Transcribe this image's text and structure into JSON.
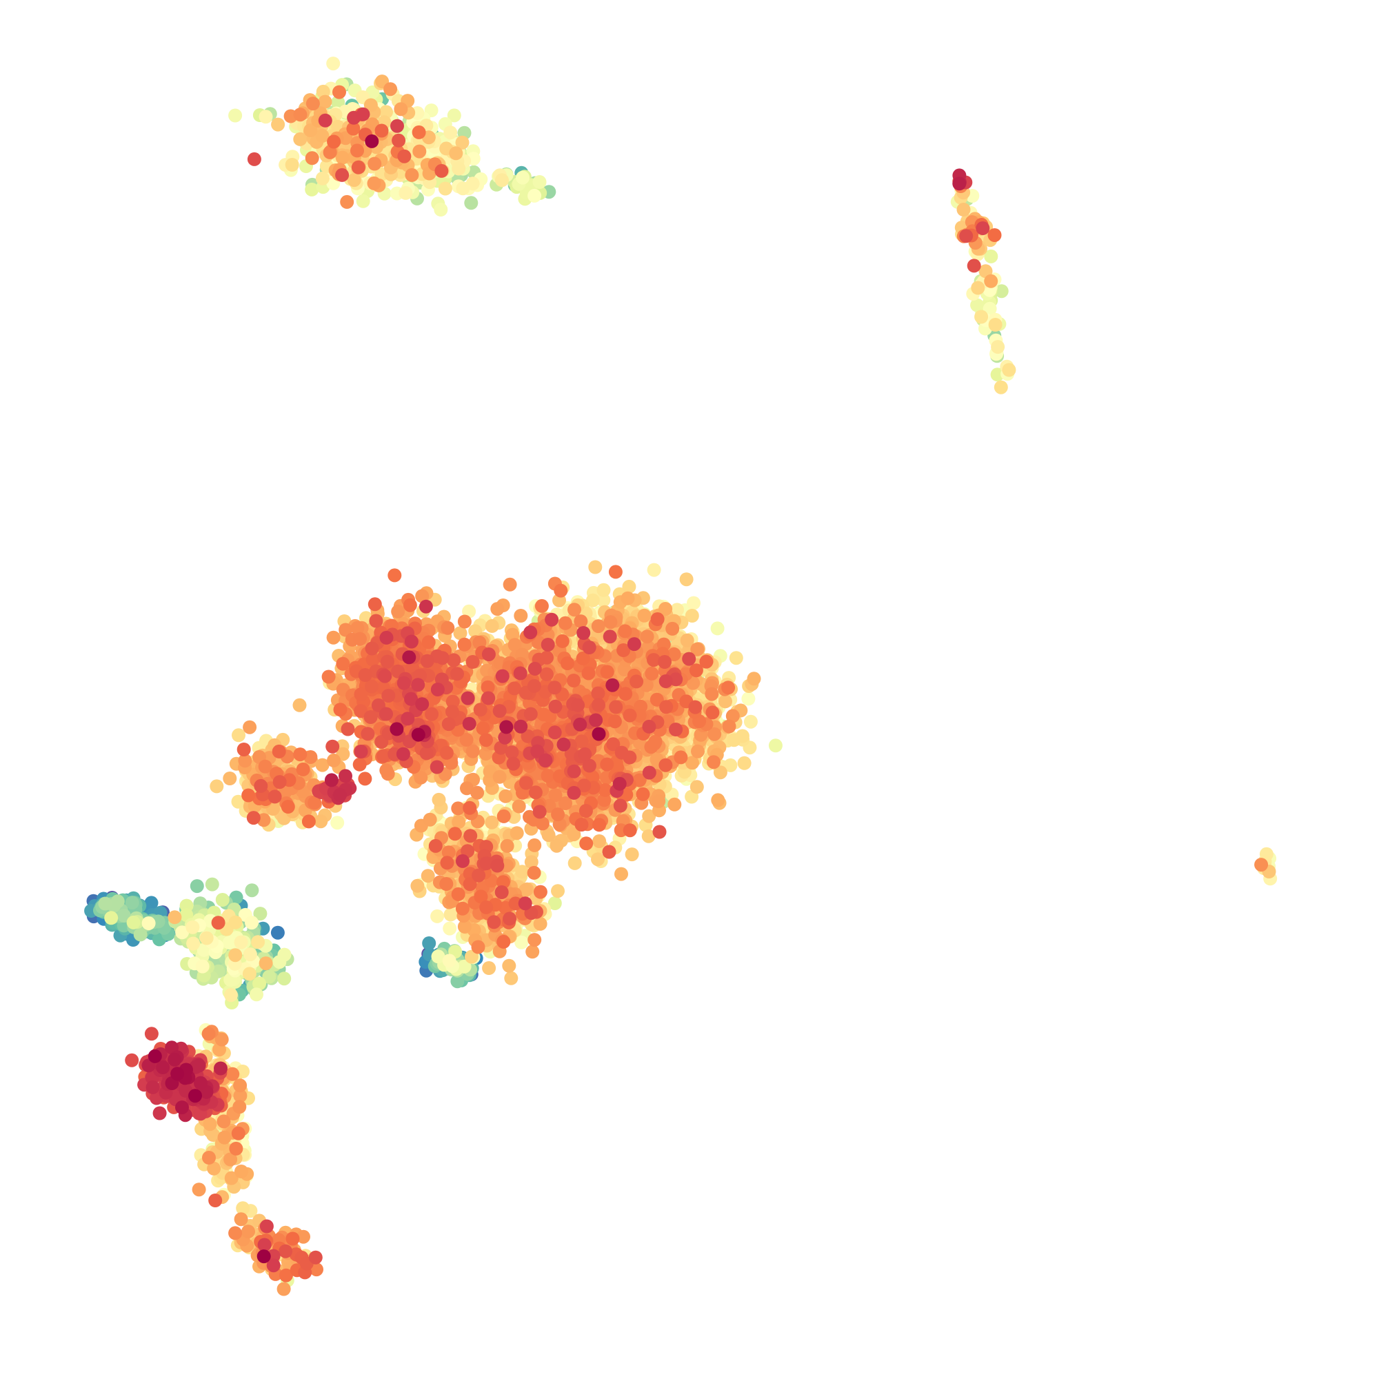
{
  "chart_data": {
    "type": "scatter",
    "title": "",
    "xlabel": "",
    "ylabel": "",
    "axes_visible": false,
    "grid": false,
    "legend": "none",
    "colormap": "Spectral_r",
    "color_range": [
      0,
      1
    ],
    "xlim": [
      0,
      100
    ],
    "ylim": [
      0,
      100
    ],
    "colormap_stops": [
      "#5e4fa2",
      "#3288bd",
      "#66c2a5",
      "#abdda4",
      "#e6f598",
      "#ffffbf",
      "#fee08b",
      "#fdae61",
      "#f46d43",
      "#d53e4f",
      "#9e0142"
    ],
    "clusters": [
      {
        "x": [
          22.5,
          25.5
        ],
        "y": [
          94.3,
          91.0
        ],
        "spread": [
          4.0,
          2.6
        ],
        "n": 360,
        "value_mean": 0.55,
        "value_sd": 0.14
      },
      {
        "x": [
          29.0,
          31.0
        ],
        "y": [
          93.0,
          90.5
        ],
        "spread": [
          2.6,
          1.8
        ],
        "n": 150,
        "value_mean": 0.46,
        "value_sd": 0.12
      },
      {
        "x": [
          36.0,
          39.0
        ],
        "y": [
          90.0,
          89.0
        ],
        "spread": [
          1.2,
          0.8
        ],
        "n": 28,
        "value_mean": 0.4,
        "value_sd": 0.1
      },
      {
        "x": [
          71.3,
          73.0
        ],
        "y": [
          89.5,
          84.0
        ],
        "spread": [
          0.9,
          1.8
        ],
        "n": 45,
        "value_mean": 0.62,
        "value_sd": 0.14
      },
      {
        "x": [
          73.0,
          74.4
        ],
        "y": [
          82.0,
          74.0
        ],
        "spread": [
          0.8,
          2.0
        ],
        "n": 40,
        "value_mean": 0.46,
        "value_sd": 0.1
      },
      {
        "x": [
          71.2,
          71.3
        ],
        "y": [
          89.6,
          89.5
        ],
        "spread": [
          0.4,
          0.3
        ],
        "n": 8,
        "value_mean": 0.85,
        "value_sd": 0.05
      },
      {
        "x": [
          95.0,
          95.3
        ],
        "y": [
          37.5,
          35.2
        ],
        "spread": [
          0.4,
          0.6
        ],
        "n": 10,
        "value_mean": 0.55,
        "value_sd": 0.1
      },
      {
        "x": [
          27.0,
          28.5
        ],
        "y": [
          53.5,
          46.0
        ],
        "spread": [
          3.5,
          3.0
        ],
        "n": 1300,
        "value_mean": 0.72,
        "value_sd": 0.07
      },
      {
        "x": [
          37.0,
          43.0
        ],
        "y": [
          50.0,
          44.0
        ],
        "spread": [
          5.0,
          5.0
        ],
        "n": 2200,
        "value_mean": 0.68,
        "value_sd": 0.08
      },
      {
        "x": [
          44.0,
          50.0
        ],
        "y": [
          53.0,
          47.0
        ],
        "spread": [
          4.0,
          4.0
        ],
        "n": 1200,
        "value_mean": 0.6,
        "value_sd": 0.1
      },
      {
        "x": [
          41.0,
          45.0
        ],
        "y": [
          55.5,
          53.5
        ],
        "spread": [
          2.5,
          1.5
        ],
        "n": 200,
        "value_mean": 0.5,
        "value_sd": 0.1
      },
      {
        "x": [
          32.0,
          36.0
        ],
        "y": [
          38.0,
          32.0
        ],
        "spread": [
          2.5,
          2.8
        ],
        "n": 650,
        "value_mean": 0.62,
        "value_sd": 0.1
      },
      {
        "x": [
          17.0,
          19.5
        ],
        "y": [
          44.0,
          41.0
        ],
        "spread": [
          2.5,
          2.0
        ],
        "n": 260,
        "value_mean": 0.66,
        "value_sd": 0.08
      },
      {
        "x": [
          22.0,
          22.8
        ],
        "y": [
          42.5,
          41.8
        ],
        "spread": [
          1.0,
          0.6
        ],
        "n": 35,
        "value_mean": 0.86,
        "value_sd": 0.05
      },
      {
        "x": [
          30.5,
          32.5
        ],
        "y": [
          29.0,
          28.0
        ],
        "spread": [
          1.2,
          0.8
        ],
        "n": 50,
        "value_mean": 0.25,
        "value_sd": 0.12
      },
      {
        "x": [
          5.0,
          8.0
        ],
        "y": [
          33.0,
          31.5
        ],
        "spread": [
          1.5,
          1.0
        ],
        "n": 180,
        "value_mean": 0.15,
        "value_sd": 0.08
      },
      {
        "x": [
          12.0,
          16.0
        ],
        "y": [
          32.0,
          28.0
        ],
        "spread": [
          2.5,
          2.2
        ],
        "n": 240,
        "value_mean": 0.35,
        "value_sd": 0.12
      },
      {
        "x": [
          9.0,
          12.0
        ],
        "y": [
          21.0,
          18.0
        ],
        "spread": [
          1.6,
          1.6
        ],
        "n": 280,
        "value_mean": 0.88,
        "value_sd": 0.05
      },
      {
        "x": [
          13.0,
          14.5
        ],
        "y": [
          22.0,
          12.0
        ],
        "spread": [
          1.5,
          2.0
        ],
        "n": 160,
        "value_mean": 0.62,
        "value_sd": 0.1
      },
      {
        "x": [
          15.5,
          19.5
        ],
        "y": [
          8.0,
          5.0
        ],
        "spread": [
          1.5,
          1.2
        ],
        "n": 90,
        "value_mean": 0.7,
        "value_sd": 0.12
      }
    ]
  }
}
